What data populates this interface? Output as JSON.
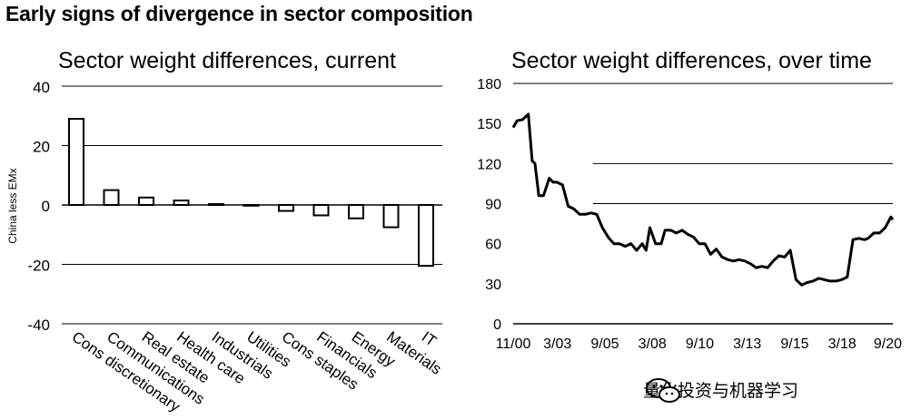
{
  "title": "Early signs of divergence in sector composition",
  "watermark": "量化投资与机器学习",
  "colors": {
    "line": "#000000",
    "grid": "#000000",
    "bar_fill": "#ffffff"
  },
  "chart_data": [
    {
      "type": "bar",
      "title": "Sector weight differences, current",
      "ylabel": "China less EMx",
      "xlabel": "",
      "ylim": [
        -40,
        40
      ],
      "yticks": [
        -40,
        -20,
        0,
        20,
        40
      ],
      "ytick_labels": [
        "-40",
        "-20",
        "0",
        "20",
        "40"
      ],
      "categories": [
        "Cons discretionary",
        "Communications",
        "Real estate",
        "Health care",
        "Industrials",
        "Utilities",
        "Cons staples",
        "Financials",
        "Energy",
        "Materials",
        "IT"
      ],
      "values": [
        29,
        5,
        2.5,
        1.5,
        0.3,
        0,
        -2,
        -3.5,
        -4.5,
        -7.5,
        -20.5
      ]
    },
    {
      "type": "line",
      "title": "Sector weight differences, over time",
      "ylim": [
        0,
        180
      ],
      "yticks": [
        0,
        30,
        60,
        90,
        120,
        150,
        180
      ],
      "ytick_labels": [
        "0",
        "30",
        "60",
        "90",
        "120",
        "150",
        "180"
      ],
      "xlim": [
        0,
        20
      ],
      "xticks": [
        0,
        2.33,
        4.83,
        7.33,
        9.83,
        12.33,
        14.83,
        17.33,
        19.83
      ],
      "xtick_labels": [
        "11/00",
        "3/03",
        "9/05",
        "3/08",
        "9/10",
        "3/13",
        "9/15",
        "3/18",
        "9/20"
      ],
      "gridlines": [
        90,
        120,
        180
      ],
      "x": [
        0,
        0.2,
        0.5,
        0.8,
        1.0,
        1.15,
        1.35,
        1.6,
        1.9,
        2.1,
        2.3,
        2.6,
        2.9,
        3.2,
        3.5,
        3.8,
        4.1,
        4.4,
        4.7,
        5.0,
        5.3,
        5.6,
        5.9,
        6.2,
        6.5,
        6.8,
        7.0,
        7.2,
        7.5,
        7.8,
        8.0,
        8.3,
        8.6,
        8.9,
        9.2,
        9.5,
        9.8,
        10.1,
        10.4,
        10.7,
        11.0,
        11.3,
        11.6,
        11.9,
        12.2,
        12.5,
        12.8,
        13.1,
        13.4,
        13.7,
        14.0,
        14.3,
        14.6,
        14.9,
        15.2,
        15.5,
        15.8,
        16.1,
        16.4,
        16.7,
        17.0,
        17.3,
        17.6,
        17.9,
        18.2,
        18.5,
        18.7,
        19.0,
        19.3,
        19.6,
        19.9,
        20.0
      ],
      "y": [
        147,
        152,
        153,
        157,
        122,
        120,
        96,
        96,
        109,
        106,
        106,
        104,
        88,
        86,
        82,
        82,
        83,
        82,
        72,
        65,
        60,
        60,
        58,
        60,
        55,
        60,
        55,
        72,
        60,
        60,
        70,
        70,
        68,
        70,
        67,
        65,
        60,
        60,
        52,
        56,
        50,
        48,
        47,
        48,
        47,
        45,
        42,
        43,
        42,
        47,
        51,
        50,
        55,
        33,
        29,
        31,
        32,
        34,
        33,
        32,
        32,
        33,
        35,
        63,
        64,
        63,
        64,
        68,
        68,
        72,
        80,
        78
      ]
    }
  ]
}
